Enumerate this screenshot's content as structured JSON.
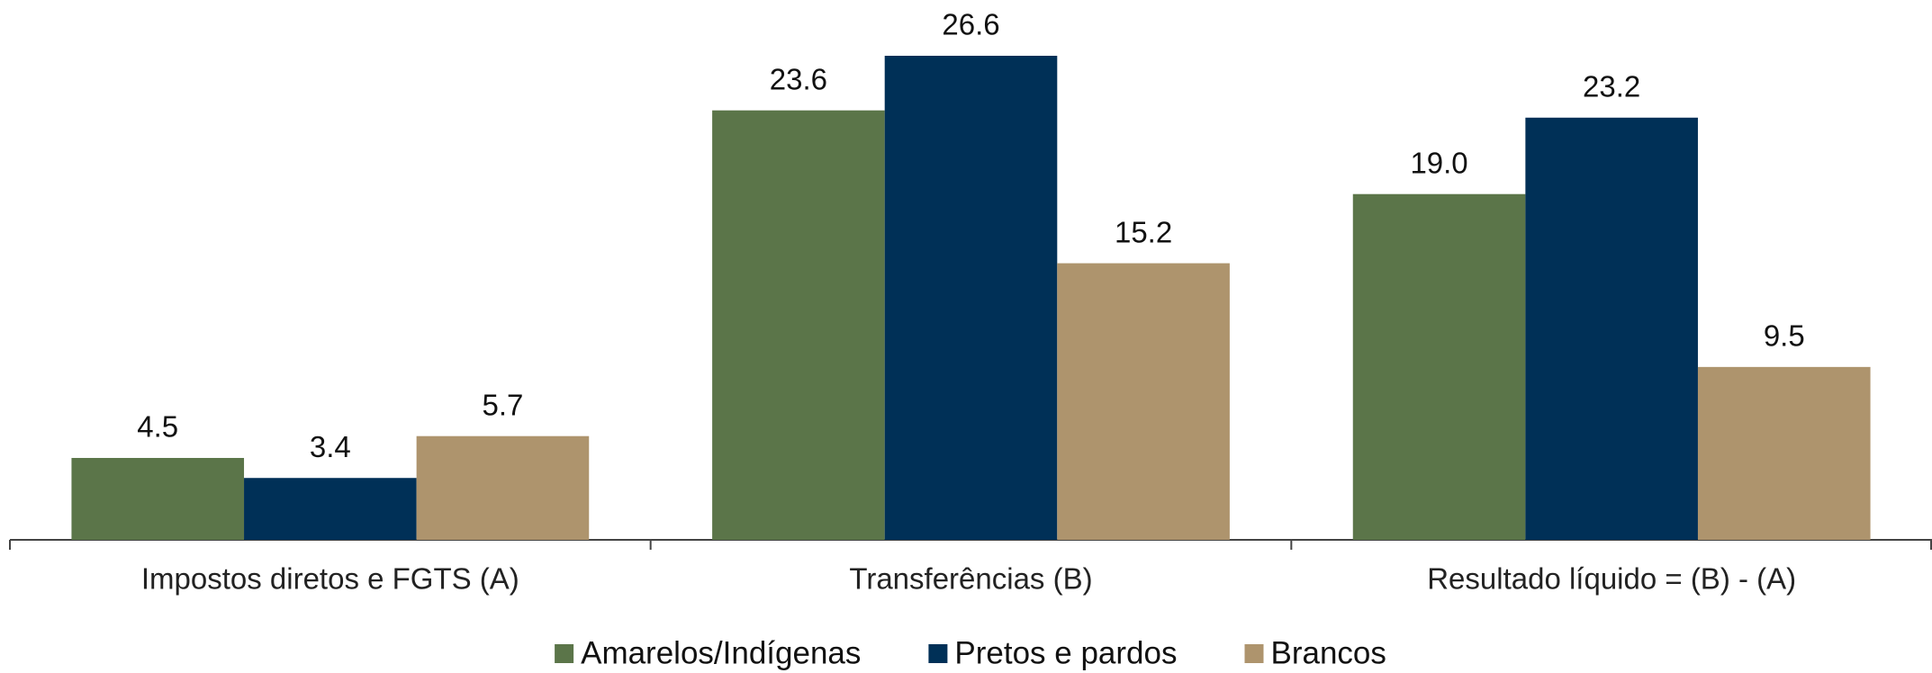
{
  "chart_data": {
    "type": "bar",
    "categories": [
      "Impostos diretos e FGTS (A)",
      "Transferências (B)",
      "Resultado líquido = (B) - (A)"
    ],
    "series": [
      {
        "name": "Amarelos/Indígenas",
        "color": "#5b7549",
        "values": [
          4.5,
          23.6,
          19
        ],
        "value_labels": [
          "4.5",
          "23.6",
          "19.0"
        ]
      },
      {
        "name": "Pretos e pardos",
        "color": "#003057",
        "values": [
          3.4,
          26.6,
          23.2
        ]
      },
      {
        "name": "Brancos",
        "color": "#ae946d",
        "values": [
          5.7,
          15.2,
          9.5
        ]
      }
    ],
    "legend": "bottom"
  }
}
